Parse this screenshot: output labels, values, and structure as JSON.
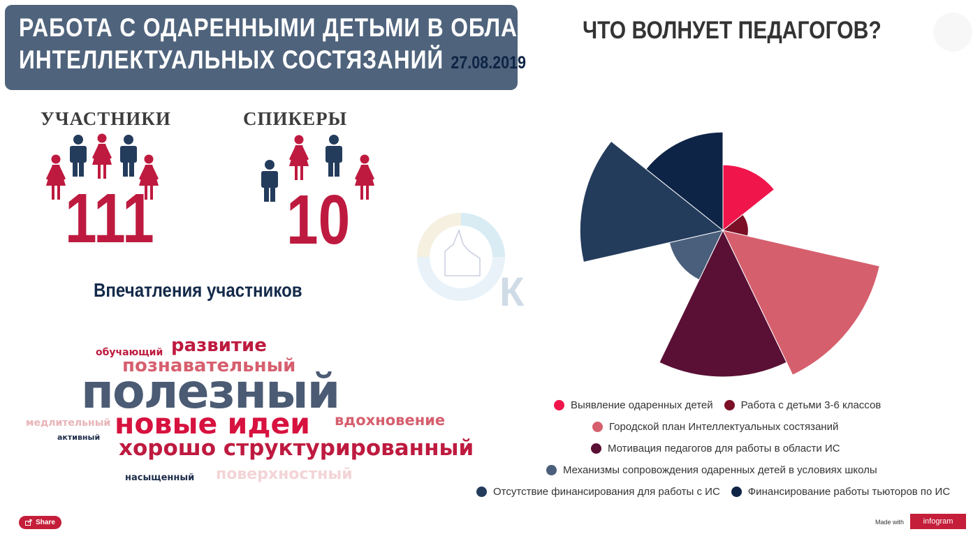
{
  "header": {
    "title_line1": "РАБОТА С ОДАРЕННЫМИ ДЕТЬМИ В ОБЛАСТИ",
    "title_line2": "ИНТЕЛЛЕКТУАЛЬНЫХ СОСТЯЗАНИЙ",
    "date": "27.08.2019"
  },
  "stats": {
    "participants_label": "УЧАСТНИКИ",
    "participants_value": "111",
    "speakers_label": "СПИКЕРЫ",
    "speakers_value": "10"
  },
  "impressions": {
    "title": "Впечатления участников",
    "words": [
      {
        "text": "обучающий",
        "color": "#be1a3f"
      },
      {
        "text": "развитие",
        "color": "#be1a3f"
      },
      {
        "text": "познавательный",
        "color": "#d65f6e"
      },
      {
        "text": "полезный",
        "color": "#4b5b74"
      },
      {
        "text": "медлительный",
        "color": "#e8b4b8"
      },
      {
        "text": "новые идеи",
        "color": "#d7123f"
      },
      {
        "text": "вдохновение",
        "color": "#d65f6e"
      },
      {
        "text": "активный",
        "color": "#1d2d4a"
      },
      {
        "text": "хорошо структурированный",
        "color": "#be1a3f"
      },
      {
        "text": "насыщенный",
        "color": "#1d2d4a"
      },
      {
        "text": "поверхностный",
        "color": "#f3d4d6"
      }
    ]
  },
  "chart_data": {
    "type": "pie",
    "title": "ЧТО ВОЛНУЕТ ПЕДАГОГОВ?",
    "variant": "polar-area",
    "categories": [
      "Выявление одаренных детей",
      "Работа с детьми 3-6 классов",
      "Городской план Интеллектуальных состязаний",
      "Мотивация педагогов для работы в области ИС",
      "Механизмы сопровождения одаренных детей в условиях школы",
      "Отсутствие финансирования для работы с ИС",
      "Финансирование работы тьюторов по ИС"
    ],
    "values": [
      2,
      0.3,
      12,
      10,
      1.4,
      9.5,
      4.5
    ],
    "colors": [
      "#f0164c",
      "#7a0f26",
      "#d65f6e",
      "#5a1035",
      "#4a5f7b",
      "#243c5c",
      "#0e2447"
    ],
    "legend_position": "bottom"
  },
  "footer": {
    "share_label": "Share",
    "made_with": "Made with",
    "brand": "infogram"
  }
}
